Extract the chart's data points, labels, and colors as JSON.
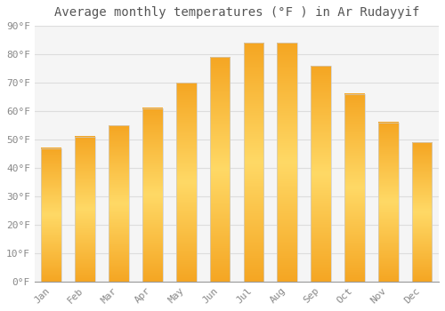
{
  "title": "Average monthly temperatures (°F ) in Ar Rudayyif",
  "months": [
    "Jan",
    "Feb",
    "Mar",
    "Apr",
    "May",
    "Jun",
    "Jul",
    "Aug",
    "Sep",
    "Oct",
    "Nov",
    "Dec"
  ],
  "values": [
    47,
    51,
    55,
    61,
    70,
    79,
    84,
    84,
    76,
    66,
    56,
    49
  ],
  "bar_color_center": "#FFD966",
  "bar_color_edge": "#F5A623",
  "background_color": "#ffffff",
  "plot_bg_color": "#f5f5f5",
  "ylim": [
    0,
    90
  ],
  "yticks": [
    0,
    10,
    20,
    30,
    40,
    50,
    60,
    70,
    80,
    90
  ],
  "ytick_labels": [
    "0°F",
    "10°F",
    "20°F",
    "30°F",
    "40°F",
    "50°F",
    "60°F",
    "70°F",
    "80°F",
    "90°F"
  ],
  "title_fontsize": 10,
  "tick_fontsize": 8,
  "grid_color": "#dddddd",
  "bar_border_color": "#cccccc",
  "bar_width": 0.6
}
